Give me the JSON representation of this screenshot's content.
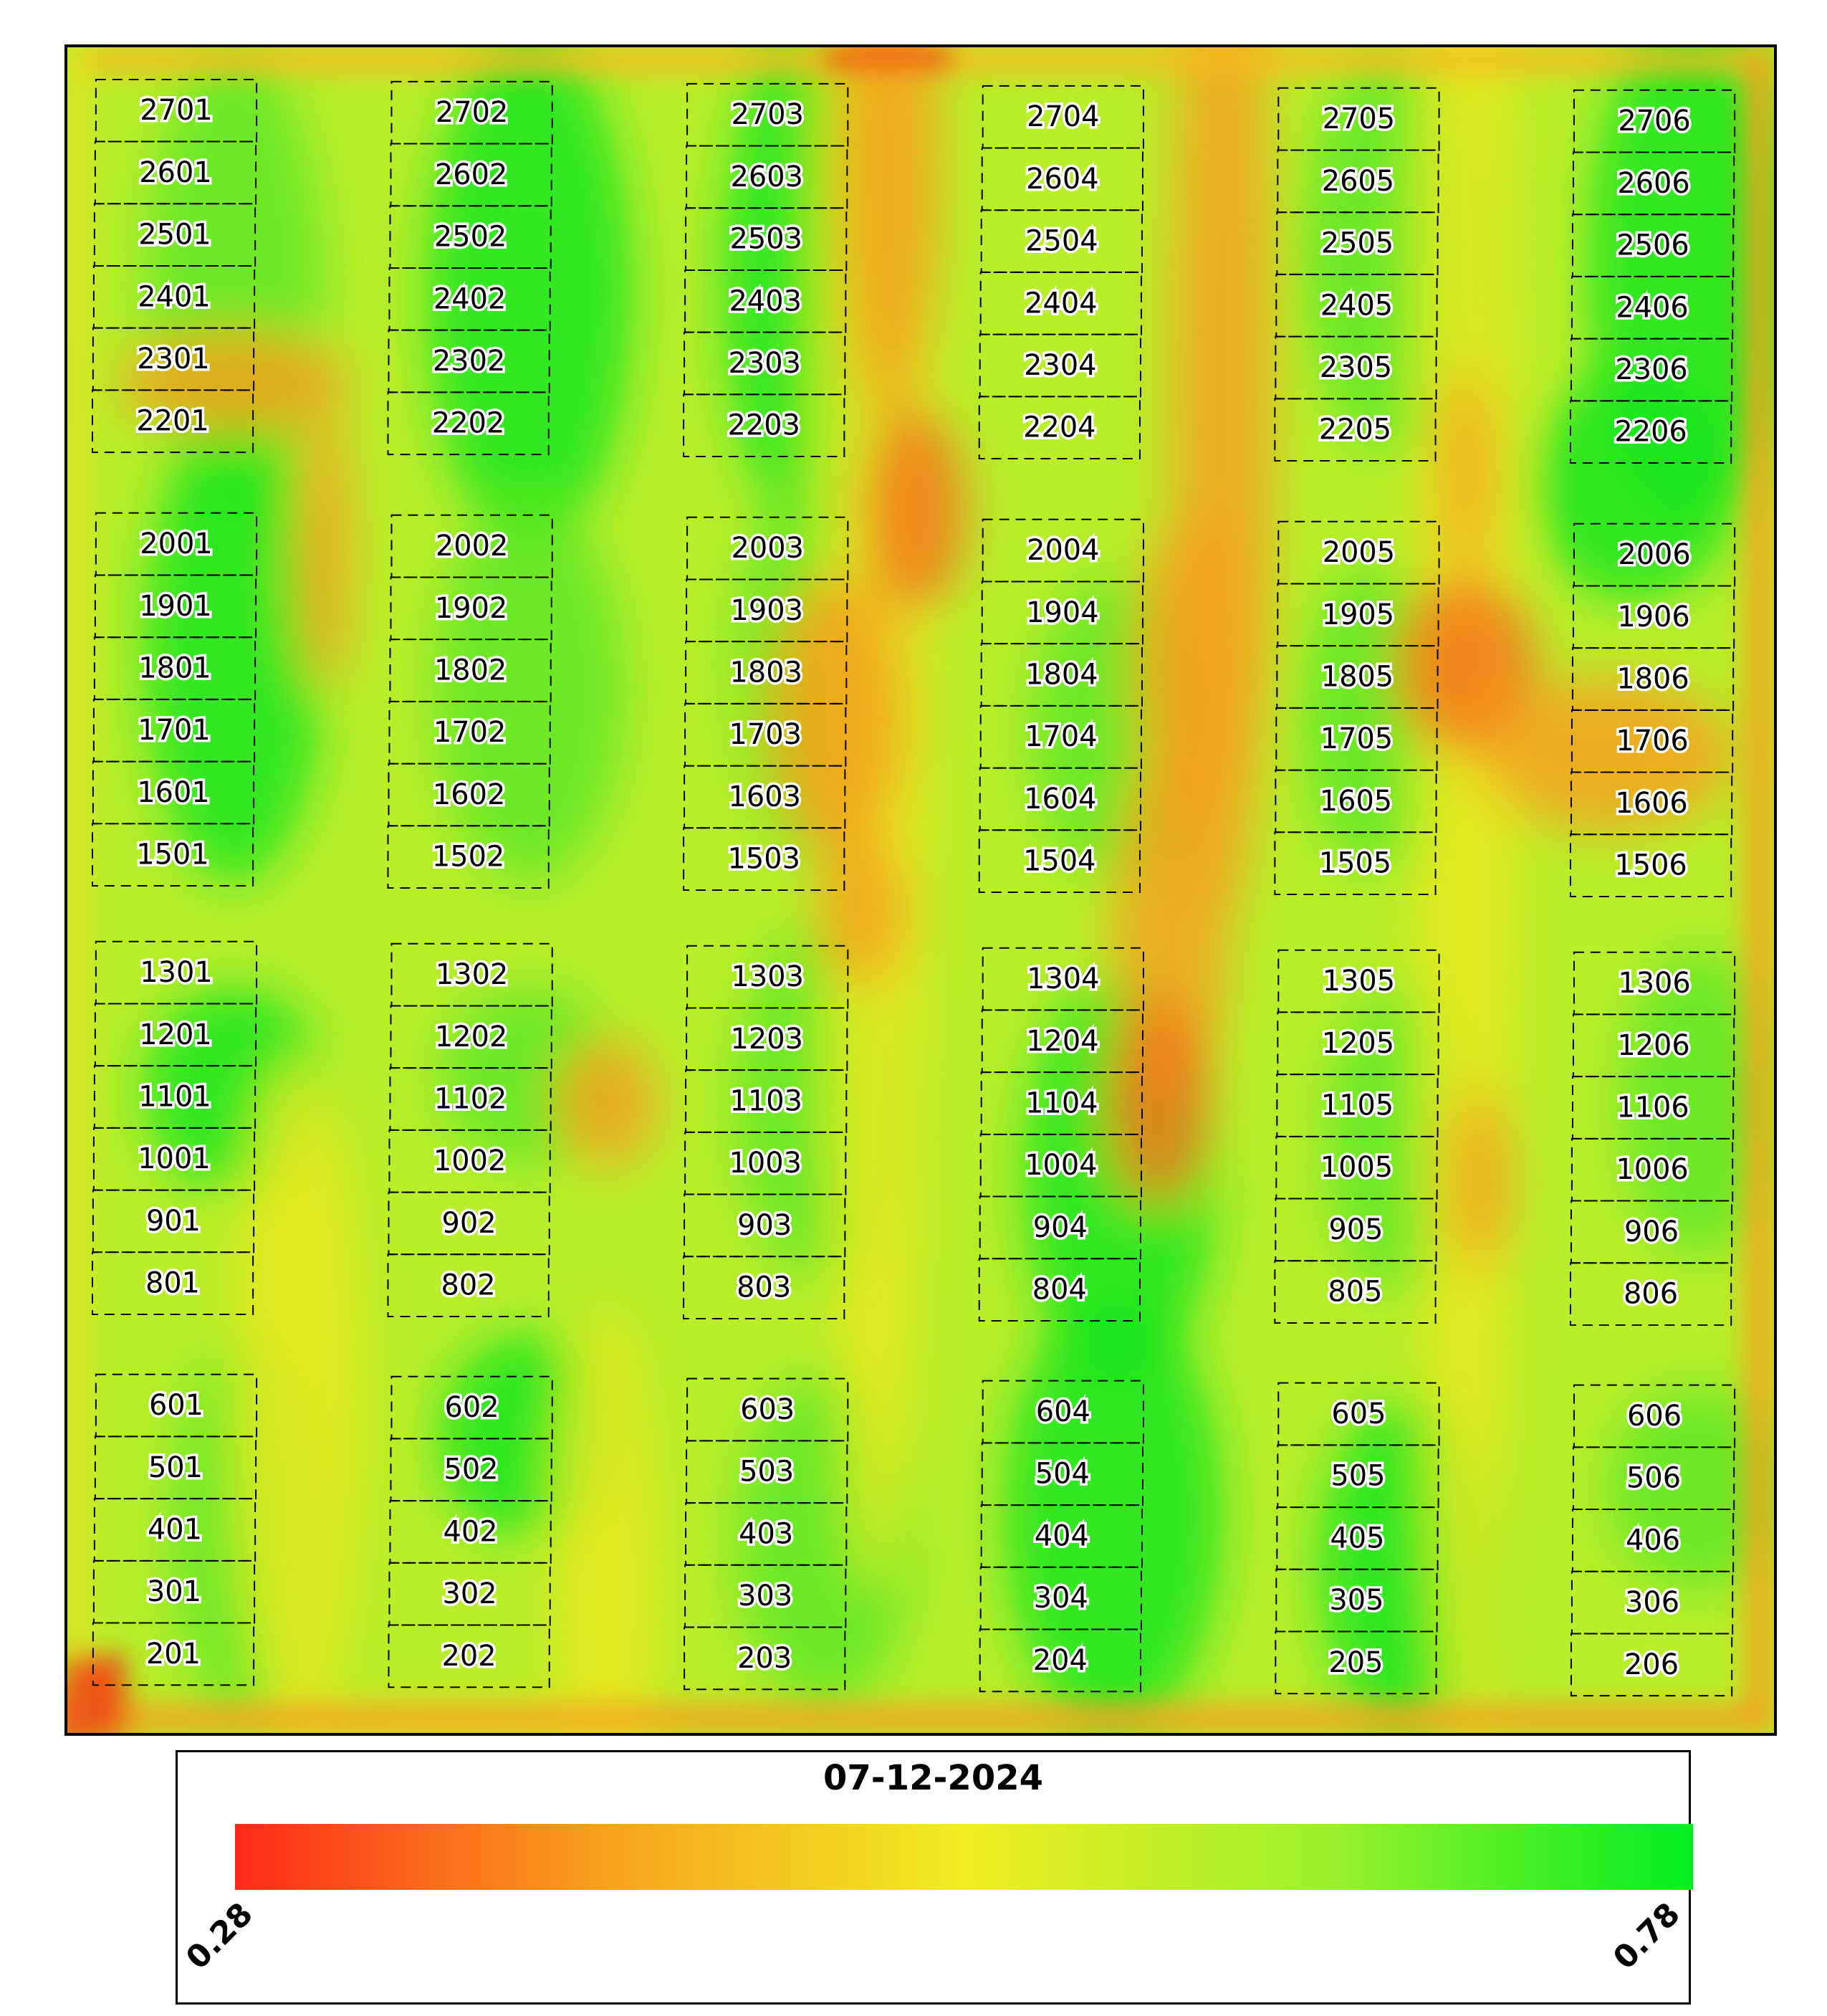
{
  "legend": {
    "date": "07-12-2024",
    "min_label": "0.28",
    "max_label": "0.78",
    "colors": [
      "#ff2a1a",
      "#f7a11c",
      "#f0ee22",
      "#9cf02a",
      "#00ee22"
    ]
  },
  "plots": {
    "label_rows": [
      [
        "2701",
        "2702",
        "2703",
        "2704",
        "2705",
        "2706"
      ],
      [
        "2601",
        "2602",
        "2603",
        "2604",
        "2605",
        "2606"
      ],
      [
        "2501",
        "2502",
        "2503",
        "2504",
        "2505",
        "2506"
      ],
      [
        "2401",
        "2402",
        "2403",
        "2404",
        "2405",
        "2406"
      ],
      [
        "2301",
        "2302",
        "2303",
        "2304",
        "2305",
        "2306"
      ],
      [
        "2201",
        "2202",
        "2203",
        "2204",
        "2205",
        "2206"
      ],
      [
        "2001",
        "2002",
        "2003",
        "2004",
        "2005",
        "2006"
      ],
      [
        "1901",
        "1902",
        "1903",
        "1904",
        "1905",
        "1906"
      ],
      [
        "1801",
        "1802",
        "1803",
        "1804",
        "1805",
        "1806"
      ],
      [
        "1701",
        "1702",
        "1703",
        "1704",
        "1705",
        "1706"
      ],
      [
        "1601",
        "1602",
        "1603",
        "1604",
        "1605",
        "1606"
      ],
      [
        "1501",
        "1502",
        "1503",
        "1504",
        "1505",
        "1506"
      ],
      [
        "1301",
        "1302",
        "1303",
        "1304",
        "1305",
        "1306"
      ],
      [
        "1201",
        "1202",
        "1203",
        "1204",
        "1205",
        "1206"
      ],
      [
        "1101",
        "1102",
        "1103",
        "1104",
        "1105",
        "1106"
      ],
      [
        "1001",
        "1002",
        "1003",
        "1004",
        "1005",
        "1006"
      ],
      [
        "901",
        "902",
        "903",
        "904",
        "905",
        "906"
      ],
      [
        "801",
        "802",
        "803",
        "804",
        "805",
        "806"
      ],
      [
        "601",
        "602",
        "603",
        "604",
        "605",
        "606"
      ],
      [
        "501",
        "502",
        "503",
        "504",
        "505",
        "506"
      ],
      [
        "401",
        "402",
        "403",
        "404",
        "405",
        "406"
      ],
      [
        "301",
        "302",
        "303",
        "304",
        "305",
        "306"
      ],
      [
        "201",
        "202",
        "203",
        "204",
        "205",
        "206"
      ]
    ]
  }
}
